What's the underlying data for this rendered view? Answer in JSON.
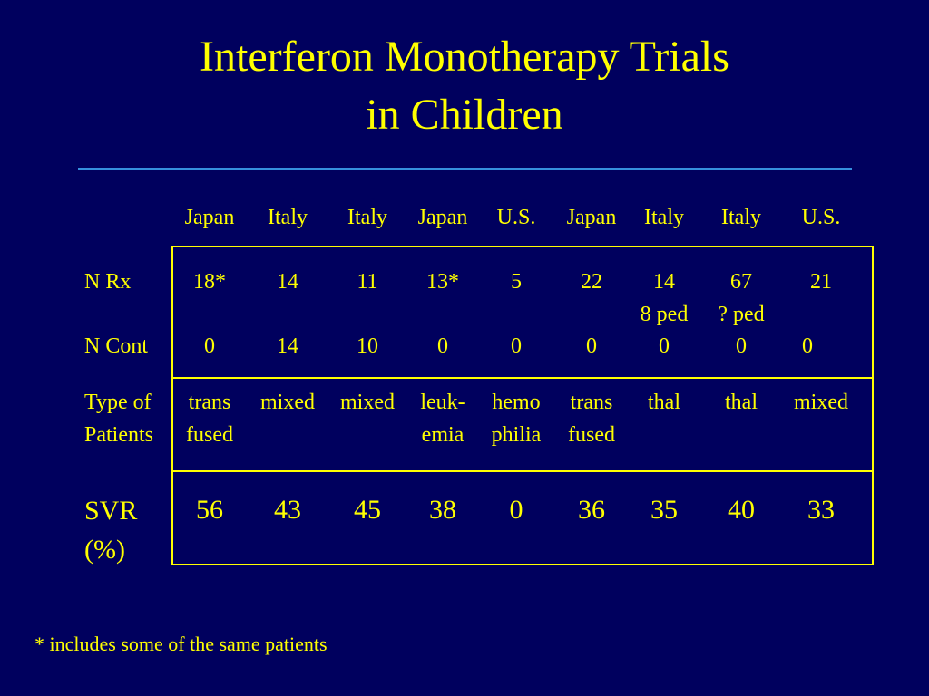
{
  "slide": {
    "title_line1": "Interferon Monotherapy Trials",
    "title_line2": "in Children",
    "footnote": "* includes some of the same patients"
  },
  "table": {
    "columns": [
      "Japan",
      "Italy",
      "Italy",
      "Japan",
      "U.S.",
      "Japan",
      "Italy",
      "Italy",
      "U.S."
    ],
    "rows": {
      "n_rx": {
        "label": "N Rx",
        "values": [
          "18*",
          "14",
          "11",
          "13*",
          "5",
          "22",
          "14",
          "67",
          "21"
        ],
        "subvalues": [
          "",
          "",
          "",
          "",
          "",
          "",
          "8 ped",
          "? ped",
          ""
        ]
      },
      "n_cont": {
        "label": "N Cont",
        "values": [
          "0",
          "14",
          "10",
          "0",
          "0",
          "0",
          "0",
          "0",
          "0"
        ]
      },
      "type": {
        "label_line1": "Type of",
        "label_line2": "Patients",
        "line1": [
          "trans",
          "mixed",
          "mixed",
          "leuk-",
          "hemo",
          "trans",
          "thal",
          "thal",
          "mixed"
        ],
        "line2": [
          "fused",
          "",
          "",
          "emia",
          "philia",
          "fused",
          "",
          "",
          ""
        ]
      },
      "svr": {
        "label_line1": "SVR",
        "label_line2": "(%)",
        "values": [
          "56",
          "43",
          "45",
          "38",
          "0",
          "36",
          "35",
          "40",
          "33"
        ]
      }
    }
  },
  "colors": {
    "background": "#00005e",
    "text": "#ffff00",
    "rule": "#3fa9f5"
  }
}
